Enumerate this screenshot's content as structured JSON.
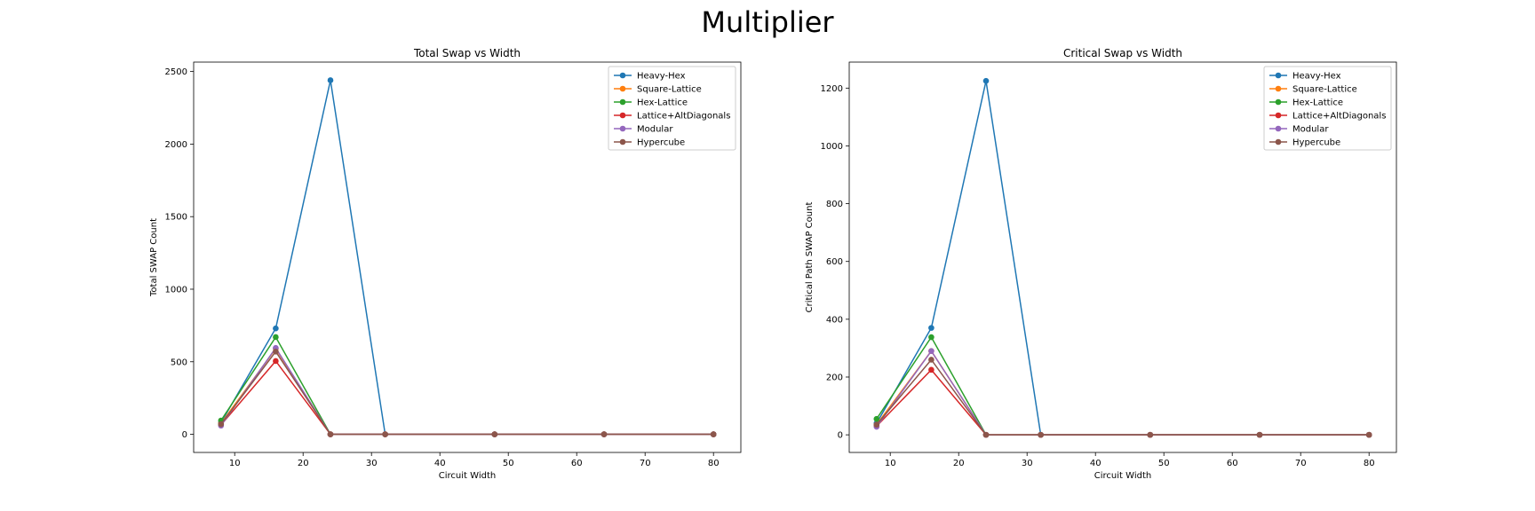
{
  "figure": {
    "suptitle": "Multiplier"
  },
  "chart_data": [
    {
      "type": "line",
      "title": "Total Swap vs Width",
      "xlabel": "Circuit Width",
      "ylabel": "Total SWAP Count",
      "x": [
        8,
        16,
        24,
        32,
        48,
        64,
        80
      ],
      "xlim": [
        4,
        84
      ],
      "ylim": [
        -125,
        2565
      ],
      "xticks": [
        10,
        20,
        30,
        40,
        50,
        60,
        70,
        80
      ],
      "yticks": [
        0,
        500,
        1000,
        1500,
        2000,
        2500
      ],
      "legend": "top-right",
      "grid": false,
      "series": [
        {
          "name": "Heavy-Hex",
          "color": "#1f77b4",
          "values": [
            80,
            730,
            2440,
            0,
            0,
            0,
            0
          ]
        },
        {
          "name": "Square-Lattice",
          "color": "#ff7f0e",
          "values": [
            75,
            590,
            0,
            0,
            0,
            0,
            0
          ]
        },
        {
          "name": "Hex-Lattice",
          "color": "#2ca02c",
          "values": [
            95,
            670,
            0,
            0,
            0,
            0,
            0
          ]
        },
        {
          "name": "Lattice+AltDiagonals",
          "color": "#d62728",
          "values": [
            65,
            505,
            0,
            0,
            0,
            0,
            0
          ]
        },
        {
          "name": "Modular",
          "color": "#9467bd",
          "values": [
            60,
            595,
            0,
            0,
            0,
            0,
            0
          ]
        },
        {
          "name": "Hypercube",
          "color": "#8c564b",
          "values": [
            70,
            570,
            0,
            0,
            0,
            0,
            0
          ]
        }
      ]
    },
    {
      "type": "line",
      "title": "Critical Swap vs Width",
      "xlabel": "Circuit Width",
      "ylabel": "Critical Path SWAP Count",
      "x": [
        8,
        16,
        24,
        32,
        48,
        64,
        80
      ],
      "xlim": [
        4,
        84
      ],
      "ylim": [
        -61,
        1290
      ],
      "xticks": [
        10,
        20,
        30,
        40,
        50,
        60,
        70,
        80
      ],
      "yticks": [
        0,
        200,
        400,
        600,
        800,
        1000,
        1200
      ],
      "legend": "top-right",
      "grid": false,
      "series": [
        {
          "name": "Heavy-Hex",
          "color": "#1f77b4",
          "values": [
            40,
            370,
            1225,
            0,
            0,
            0,
            0
          ]
        },
        {
          "name": "Square-Lattice",
          "color": "#ff7f0e",
          "values": [
            35,
            290,
            0,
            0,
            0,
            0,
            0
          ]
        },
        {
          "name": "Hex-Lattice",
          "color": "#2ca02c",
          "values": [
            55,
            338,
            0,
            0,
            0,
            0,
            0
          ]
        },
        {
          "name": "Lattice+AltDiagonals",
          "color": "#d62728",
          "values": [
            30,
            225,
            0,
            0,
            0,
            0,
            0
          ]
        },
        {
          "name": "Modular",
          "color": "#9467bd",
          "values": [
            28,
            290,
            0,
            0,
            0,
            0,
            0
          ]
        },
        {
          "name": "Hypercube",
          "color": "#8c564b",
          "values": [
            35,
            260,
            0,
            0,
            0,
            0,
            0
          ]
        }
      ]
    }
  ]
}
